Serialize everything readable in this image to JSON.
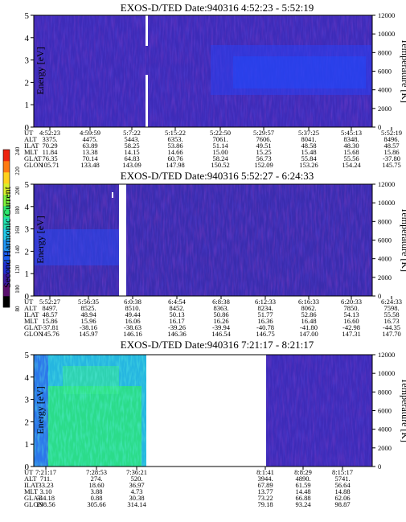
{
  "figure": {
    "colorbar": {
      "label": "Second Harmonic Current",
      "ticks": [
        "80",
        "100",
        "120",
        "140",
        "160",
        "180",
        "200",
        "220",
        "240"
      ],
      "colors": [
        "#000000",
        "#5a0f6e",
        "#3a1a9e",
        "#1f2fd0",
        "#1b5cf0",
        "#1f95f5",
        "#21c9e8",
        "#22e0b0",
        "#2ee86e",
        "#7df23a",
        "#d8f02a",
        "#ffd21c",
        "#ff7a12",
        "#ee2410"
      ]
    },
    "panels": [
      {
        "title": "EXOS-D/TED   Date:940316  4:52:23 - 5:52:19",
        "ylabel_left": "Energy [eV]",
        "ylabel_right": "Temperature [K]",
        "orbit_labels": [
          "UT",
          "ALT",
          "ILAT",
          "MLT",
          "GLAT",
          "GLON"
        ],
        "orbit_cols": [
          [
            "4:52:23",
            "3375.",
            "70.29",
            "11.84",
            "76.35",
            "105.71"
          ],
          [
            "4:59:59",
            "4475.",
            "63.89",
            "13.38",
            "70.14",
            "133.48"
          ],
          [
            "5:7:22",
            "5443.",
            "58.25",
            "14.15",
            "64.83",
            "143.09"
          ],
          [
            "5:15:22",
            "6353.",
            "53.86",
            "14.66",
            "60.76",
            "147.98"
          ],
          [
            "5:22:50",
            "7061.",
            "51.14",
            "15.00",
            "58.24",
            "150.52"
          ],
          [
            "5:29:57",
            "7606.",
            "49.51",
            "15.25",
            "56.73",
            "152.09"
          ],
          [
            "5:37:25",
            "8041.",
            "48.58",
            "15.48",
            "55.84",
            "153.26"
          ],
          [
            "5:45:13",
            "8348.",
            "48.30",
            "15.68",
            "55.56",
            "154.24"
          ],
          [
            "5:52:19",
            "8496.",
            "48.57",
            "15.86",
            "-37.80",
            "145.75"
          ]
        ]
      },
      {
        "title": "EXOS-D/TED   Date:940316  5:52:27 - 6:24:33",
        "ylabel_left": "Energy [eV]",
        "ylabel_right": "Temperature [K]",
        "orbit_labels": [
          "UT",
          "ALT",
          "ILAT",
          "MLT",
          "GLAT",
          "GLON"
        ],
        "orbit_cols": [
          [
            "5:52:27",
            "8497.",
            "48.57",
            "15.86",
            "-37.81",
            "145.76"
          ],
          [
            "5:56:35",
            "8525.",
            "48.94",
            "15.96",
            "-38.16",
            "145.97"
          ],
          [
            "6:0:38",
            "8510.",
            "49.44",
            "16.06",
            "-38.63",
            "146.16"
          ],
          [
            "6:4:54",
            "8452.",
            "50.13",
            "16.17",
            "-39.26",
            "146.36"
          ],
          [
            "6:8:38",
            "8363.",
            "50.86",
            "16.26",
            "-39.94",
            "146.54"
          ],
          [
            "6:12:33",
            "8234.",
            "51.77",
            "16.36",
            "-40.78",
            "146.75"
          ],
          [
            "6:16:33",
            "8062.",
            "52.86",
            "16.48",
            "-41.80",
            "147.00"
          ],
          [
            "6:20:33",
            "7850.",
            "54.13",
            "16.60",
            "-42.98",
            "147.31"
          ],
          [
            "6:24:33",
            "7598.",
            "55.58",
            "16.73",
            "-44.35",
            "147.70"
          ]
        ]
      },
      {
        "title": "EXOS-D/TED   Date:940316  7:21:17 - 8:21:17",
        "ylabel_left": "Energy [eV]",
        "ylabel_right": "Temperature [K]",
        "orbit_labels": [
          "UT",
          "ALT",
          "ILAT",
          "MLT",
          "GLAT",
          "GLON"
        ],
        "orbit_cols": [
          [
            "7:21:17",
            "711.",
            "33.23",
            "3.10",
            "-44.18",
            "298.56"
          ],
          [
            "7:28:53",
            "274.",
            "18.60",
            "3.88",
            "0.88",
            "305.66"
          ],
          [
            "7:36:21",
            "520.",
            "36.97",
            "4.73",
            "30.38",
            "314.14"
          ],
          [
            "8:1:41",
            "3944.",
            "67.89",
            "13.77",
            "73.22",
            "79.18"
          ],
          [
            "8:8:29",
            "4890.",
            "61.59",
            "14.48",
            "66.88",
            "93.24"
          ],
          [
            "8:15:17",
            "5741.",
            "56.64",
            "14.88",
            "62.06",
            "98.87"
          ]
        ]
      }
    ]
  },
  "chart_data": [
    {
      "type": "heatmap",
      "title": "EXOS-D/TED   Date:940316  4:52:23 - 5:52:19",
      "xlabel": "UT",
      "ylabel": "Energy [eV]",
      "y2label": "Temperature [K]",
      "ylim": [
        0,
        5
      ],
      "y2lim": [
        0,
        12000
      ],
      "yticks": [
        0,
        1,
        2,
        3,
        4,
        5
      ],
      "y2ticks": [
        0,
        2000,
        4000,
        6000,
        8000,
        10000,
        12000
      ],
      "x_ticks": [
        "4:52:23",
        "4:59:59",
        "5:7:22",
        "5:15:22",
        "5:22:50",
        "5:29:57",
        "5:37:25",
        "5:45:13",
        "5:52:19"
      ],
      "colorbar_label": "Second Harmonic Current",
      "colorbar_range": [
        80,
        240
      ],
      "features": [
        {
          "kind": "data-gap",
          "ut": "5:7:22",
          "energy_range": [
            2.7,
            5
          ]
        },
        {
          "kind": "data-gap",
          "ut": "5:7:22",
          "energy_range": [
            0,
            2.4
          ]
        },
        {
          "kind": "enhanced",
          "ut_range": [
            "5:22:50",
            "5:52:19"
          ],
          "energy_range": [
            1.5,
            3.2
          ],
          "level": 145
        }
      ]
    },
    {
      "type": "heatmap",
      "title": "EXOS-D/TED   Date:940316  5:52:27 - 6:24:33",
      "xlabel": "UT",
      "ylabel": "Energy [eV]",
      "y2label": "Temperature [K]",
      "ylim": [
        0,
        5
      ],
      "y2lim": [
        0,
        12000
      ],
      "yticks": [
        0,
        1,
        2,
        3,
        4,
        5
      ],
      "y2ticks": [
        0,
        2000,
        4000,
        6000,
        8000,
        10000,
        12000
      ],
      "x_ticks": [
        "5:52:27",
        "5:56:35",
        "6:0:38",
        "6:4:54",
        "6:8:38",
        "6:12:33",
        "6:16:33",
        "6:20:33",
        "6:24:33"
      ],
      "colorbar_label": "Second Harmonic Current",
      "colorbar_range": [
        80,
        240
      ],
      "features": [
        {
          "kind": "data-gap",
          "ut_range": [
            "5:59:30",
            "6:0:38"
          ],
          "energy_range": [
            0,
            5
          ]
        },
        {
          "kind": "enhanced",
          "ut_range": [
            "5:52:27",
            "5:59:30"
          ],
          "energy_range": [
            1.5,
            3.5
          ],
          "level": 140
        }
      ]
    },
    {
      "type": "heatmap",
      "title": "EXOS-D/TED   Date:940316  7:21:17 - 8:21:17",
      "xlabel": "UT",
      "ylabel": "Energy [eV]",
      "y2label": "Temperature [K]",
      "ylim": [
        0,
        5
      ],
      "y2lim": [
        0,
        12000
      ],
      "yticks": [
        0,
        1,
        2,
        3,
        4,
        5
      ],
      "y2ticks": [
        0,
        2000,
        4000,
        6000,
        8000,
        10000,
        12000
      ],
      "x_ticks": [
        "7:21:17",
        "7:28:53",
        "7:36:21",
        "8:1:41",
        "8:8:29",
        "8:15:17"
      ],
      "colorbar_label": "Second Harmonic Current",
      "colorbar_range": [
        80,
        240
      ],
      "features": [
        {
          "kind": "enhanced",
          "ut_range": [
            "7:21:17",
            "7:36:21"
          ],
          "energy_range": [
            0,
            5
          ],
          "level": 185
        },
        {
          "kind": "data-gap",
          "ut_range": [
            "7:37:30",
            "8:0:30"
          ],
          "energy_range": [
            0,
            5
          ]
        }
      ]
    }
  ]
}
